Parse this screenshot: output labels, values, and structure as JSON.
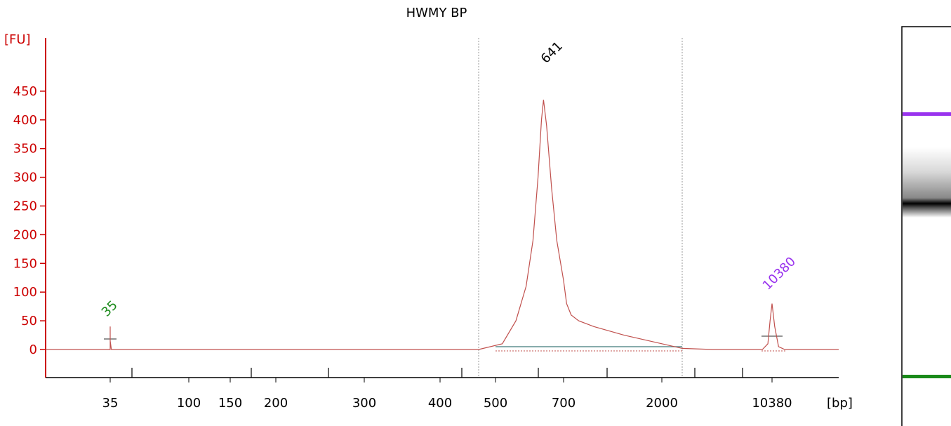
{
  "chart_data": {
    "type": "line",
    "title": "HWMY BP",
    "ylabel": "[FU]",
    "xlabel": "[bp]",
    "y_ticks": [
      0,
      50,
      100,
      150,
      200,
      250,
      300,
      350,
      400,
      450
    ],
    "ylim": [
      -50,
      470
    ],
    "x_tick_labels": [
      "35",
      "100",
      "150",
      "200",
      "300",
      "400",
      "500",
      "700",
      "2000",
      "10380"
    ],
    "peak_labels": [
      {
        "label": "35",
        "color": "#1a8a1a"
      },
      {
        "label": "641",
        "color": "#000000"
      },
      {
        "label": "10380",
        "color": "#9933ee"
      }
    ],
    "series": [
      {
        "color": "#c0504d",
        "x_bp": [
          35,
          35,
          35,
          35,
          36,
          100,
          200,
          400,
          470,
          520,
          560,
          590,
          610,
          625,
          635,
          641,
          650,
          665,
          680,
          700,
          740,
          800,
          900,
          1100,
          1500,
          2000,
          2200,
          5000,
          9500,
          10000,
          10200,
          10380,
          10550,
          10800,
          11200,
          12000,
          14000
        ],
        "y_fu": [
          0,
          5,
          40,
          15,
          0,
          0,
          0,
          0,
          0,
          10,
          50,
          110,
          190,
          300,
          400,
          435,
          390,
          280,
          190,
          120,
          80,
          60,
          50,
          40,
          25,
          10,
          2,
          0,
          0,
          10,
          50,
          80,
          40,
          5,
          0,
          0,
          0
        ]
      }
    ],
    "gel": {
      "top_marker_color": "#9933ee",
      "bottom_marker_color": "#1a8a1a",
      "band_color": "#000000"
    }
  }
}
